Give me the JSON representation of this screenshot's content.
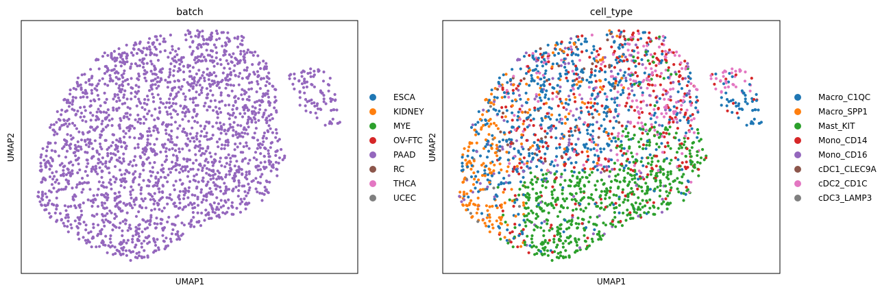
{
  "chart_data": [
    {
      "type": "scatter",
      "title": "batch",
      "xlabel": "UMAP1",
      "ylabel": "UMAP2",
      "xticks": [],
      "yticks": [],
      "grid": false,
      "legend_position": "right",
      "legend": [
        {
          "label": "ESCA",
          "color": "#1f77b4"
        },
        {
          "label": "KIDNEY",
          "color": "#ff7f0e"
        },
        {
          "label": "MYE",
          "color": "#2ca02c"
        },
        {
          "label": "OV-FTC",
          "color": "#d62728"
        },
        {
          "label": "PAAD",
          "color": "#9467bd"
        },
        {
          "label": "RC",
          "color": "#8c564b"
        },
        {
          "label": "THCA",
          "color": "#e377c2"
        },
        {
          "label": "UCEC",
          "color": "#7f7f7f"
        }
      ],
      "series_points_approx": {
        "PAAD": 2400
      },
      "embedding_shape": "single dense blob with small island at upper right"
    },
    {
      "type": "scatter",
      "title": "cell_type",
      "xlabel": "UMAP1",
      "ylabel": "UMAP2",
      "xticks": [],
      "yticks": [],
      "grid": false,
      "legend_position": "right",
      "legend": [
        {
          "label": "Macro_C1QC",
          "color": "#1f77b4"
        },
        {
          "label": "Macro_SPP1",
          "color": "#ff7f0e"
        },
        {
          "label": "Mast_KIT",
          "color": "#2ca02c"
        },
        {
          "label": "Mono_CD14",
          "color": "#d62728"
        },
        {
          "label": "Mono_CD16",
          "color": "#9467bd"
        },
        {
          "label": "cDC1_CLEC9A",
          "color": "#8c564b"
        },
        {
          "label": "cDC2_CD1C",
          "color": "#e377c2"
        },
        {
          "label": "cDC3_LAMP3",
          "color": "#7f7f7f"
        }
      ],
      "composition_approx": {
        "Macro_C1QC": "upper-left and left body, lower part of island",
        "Macro_SPP1": "left and lower-left edge",
        "Mast_KIT": "lower-center and lower-right",
        "Mono_CD14": "upper-center and right",
        "Mono_CD16": "sparse throughout",
        "cDC1_CLEC9A": "rare",
        "cDC2_CD1C": "upper-right and top of island",
        "cDC3_LAMP3": "rare, lower-left"
      }
    }
  ]
}
